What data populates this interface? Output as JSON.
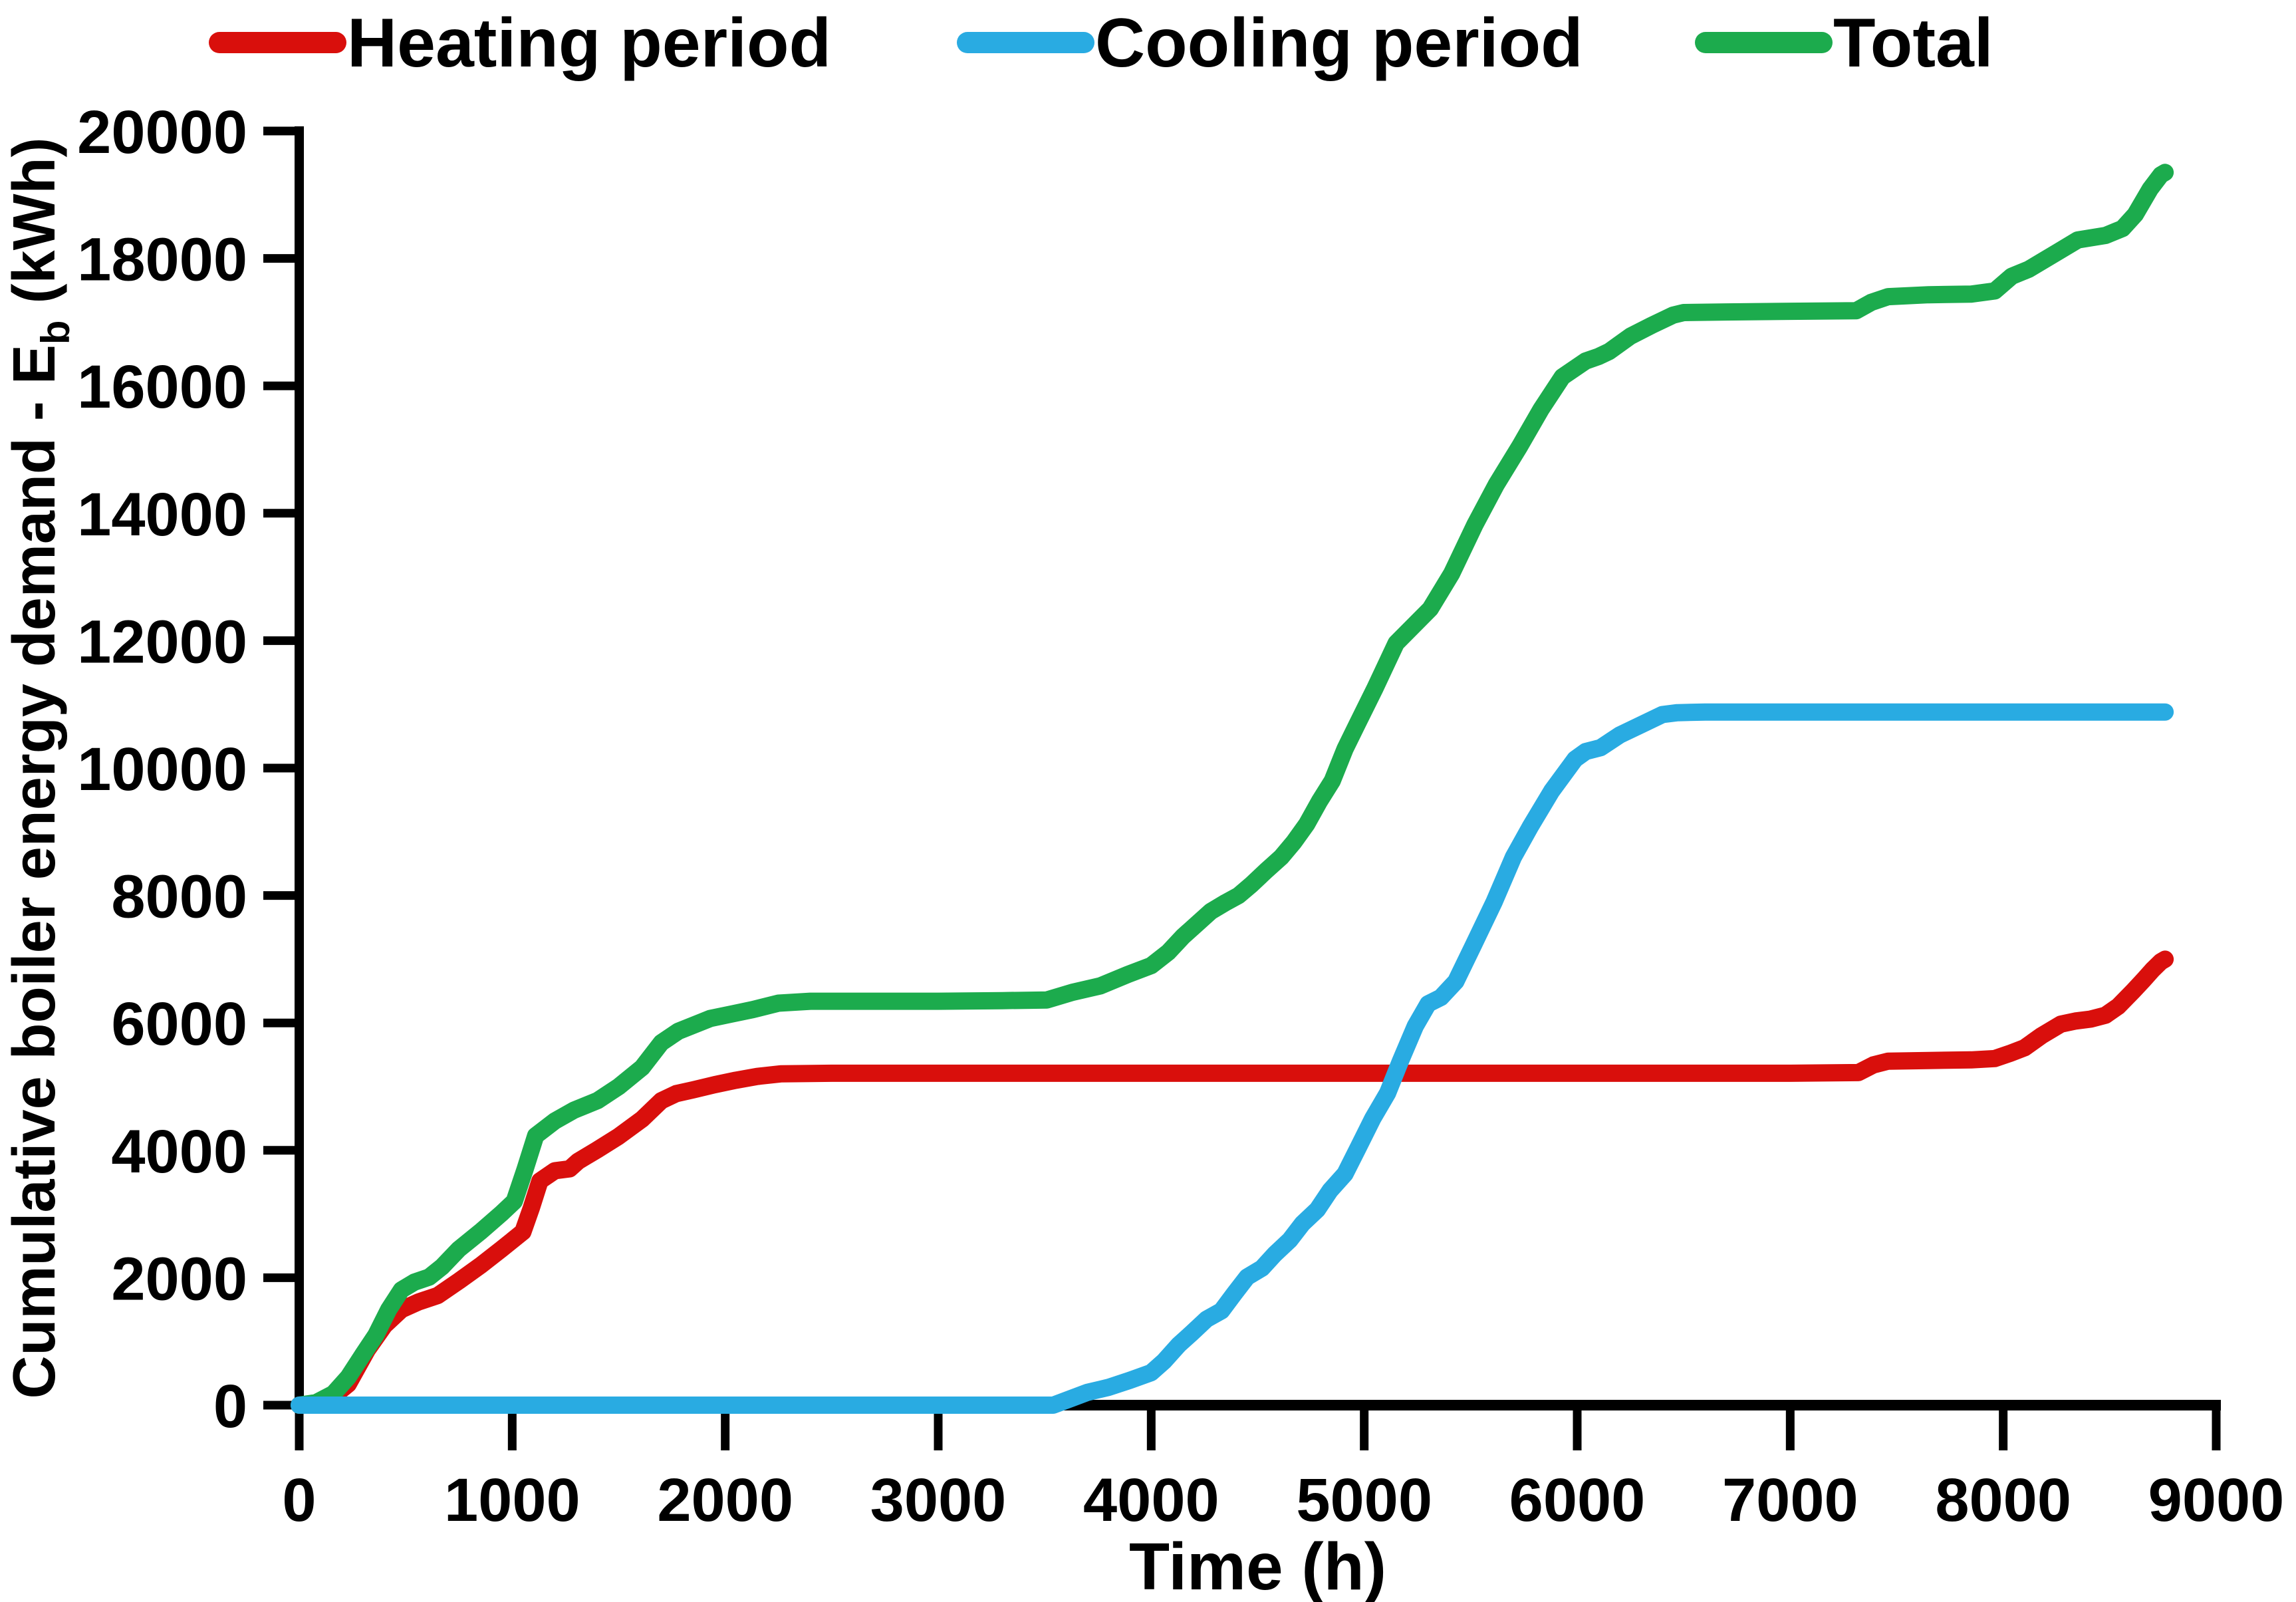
{
  "figure": {
    "background": "#ffffff",
    "axis_color": "#000000"
  },
  "legend": {
    "items": [
      {
        "label": "Heating period",
        "color": "#d90f0c"
      },
      {
        "label": "Cooling period",
        "color": "#29abe2"
      },
      {
        "label": "Total",
        "color": "#1cab4d"
      }
    ]
  },
  "chart_data": {
    "type": "line",
    "title": "",
    "xlabel": "Time (h)",
    "ylabel": {
      "prefix": "Cumulative boiler energy demand - E",
      "sub": "b",
      "suffix": " (kWh)"
    },
    "xlim": [
      0,
      9000
    ],
    "ylim": [
      0,
      20000
    ],
    "grid": false,
    "legend_position": "top",
    "xticks": [
      0,
      1000,
      2000,
      3000,
      4000,
      5000,
      6000,
      7000,
      8000,
      9000
    ],
    "yticks": [
      0,
      2000,
      4000,
      6000,
      8000,
      10000,
      12000,
      14000,
      16000,
      18000,
      20000
    ],
    "series": [
      {
        "name": "Heating period",
        "color": "#d90f0c",
        "points": [
          [
            0,
            0
          ],
          [
            80,
            20
          ],
          [
            160,
            140
          ],
          [
            230,
            330
          ],
          [
            320,
            870
          ],
          [
            400,
            1250
          ],
          [
            480,
            1500
          ],
          [
            560,
            1620
          ],
          [
            650,
            1720
          ],
          [
            750,
            1950
          ],
          [
            850,
            2190
          ],
          [
            950,
            2450
          ],
          [
            1050,
            2720
          ],
          [
            1090,
            3100
          ],
          [
            1130,
            3520
          ],
          [
            1200,
            3680
          ],
          [
            1270,
            3710
          ],
          [
            1310,
            3830
          ],
          [
            1400,
            4010
          ],
          [
            1500,
            4220
          ],
          [
            1610,
            4490
          ],
          [
            1700,
            4780
          ],
          [
            1770,
            4890
          ],
          [
            1850,
            4950
          ],
          [
            1950,
            5030
          ],
          [
            2050,
            5100
          ],
          [
            2150,
            5160
          ],
          [
            2260,
            5200
          ],
          [
            2500,
            5210
          ],
          [
            3000,
            5210
          ],
          [
            3500,
            5210
          ],
          [
            4000,
            5210
          ],
          [
            4500,
            5210
          ],
          [
            5000,
            5210
          ],
          [
            5500,
            5210
          ],
          [
            6000,
            5210
          ],
          [
            6500,
            5210
          ],
          [
            7000,
            5210
          ],
          [
            7320,
            5220
          ],
          [
            7390,
            5340
          ],
          [
            7460,
            5400
          ],
          [
            7650,
            5410
          ],
          [
            7850,
            5420
          ],
          [
            7960,
            5440
          ],
          [
            8030,
            5520
          ],
          [
            8100,
            5610
          ],
          [
            8180,
            5800
          ],
          [
            8270,
            5980
          ],
          [
            8340,
            6030
          ],
          [
            8410,
            6060
          ],
          [
            8480,
            6120
          ],
          [
            8540,
            6260
          ],
          [
            8610,
            6500
          ],
          [
            8660,
            6680
          ],
          [
            8700,
            6830
          ],
          [
            8740,
            6960
          ],
          [
            8760,
            7000
          ]
        ]
      },
      {
        "name": "Cooling period",
        "color": "#29abe2",
        "points": [
          [
            0,
            0
          ],
          [
            1000,
            0
          ],
          [
            2000,
            0
          ],
          [
            3000,
            0
          ],
          [
            3540,
            0
          ],
          [
            3620,
            100
          ],
          [
            3700,
            200
          ],
          [
            3800,
            280
          ],
          [
            3900,
            390
          ],
          [
            4000,
            510
          ],
          [
            4060,
            690
          ],
          [
            4130,
            950
          ],
          [
            4190,
            1130
          ],
          [
            4260,
            1350
          ],
          [
            4330,
            1480
          ],
          [
            4390,
            1750
          ],
          [
            4450,
            2010
          ],
          [
            4520,
            2150
          ],
          [
            4580,
            2370
          ],
          [
            4650,
            2590
          ],
          [
            4710,
            2850
          ],
          [
            4780,
            3070
          ],
          [
            4840,
            3370
          ],
          [
            4910,
            3630
          ],
          [
            4970,
            4030
          ],
          [
            5040,
            4500
          ],
          [
            5110,
            4900
          ],
          [
            5170,
            5400
          ],
          [
            5240,
            5950
          ],
          [
            5300,
            6300
          ],
          [
            5360,
            6400
          ],
          [
            5430,
            6650
          ],
          [
            5510,
            7200
          ],
          [
            5610,
            7900
          ],
          [
            5700,
            8600
          ],
          [
            5780,
            9080
          ],
          [
            5880,
            9640
          ],
          [
            5990,
            10140
          ],
          [
            6040,
            10260
          ],
          [
            6110,
            10320
          ],
          [
            6200,
            10520
          ],
          [
            6300,
            10680
          ],
          [
            6400,
            10840
          ],
          [
            6470,
            10870
          ],
          [
            6600,
            10880
          ],
          [
            7000,
            10880
          ],
          [
            7500,
            10880
          ],
          [
            8000,
            10880
          ],
          [
            8400,
            10880
          ],
          [
            8760,
            10880
          ]
        ]
      },
      {
        "name": "Total",
        "color": "#1cab4d",
        "points": [
          [
            0,
            0
          ],
          [
            80,
            40
          ],
          [
            160,
            180
          ],
          [
            230,
            440
          ],
          [
            300,
            800
          ],
          [
            360,
            1100
          ],
          [
            420,
            1500
          ],
          [
            480,
            1810
          ],
          [
            540,
            1930
          ],
          [
            610,
            2010
          ],
          [
            670,
            2170
          ],
          [
            750,
            2450
          ],
          [
            850,
            2720
          ],
          [
            950,
            3010
          ],
          [
            1010,
            3200
          ],
          [
            1060,
            3700
          ],
          [
            1110,
            4230
          ],
          [
            1200,
            4460
          ],
          [
            1290,
            4630
          ],
          [
            1400,
            4780
          ],
          [
            1500,
            5000
          ],
          [
            1610,
            5300
          ],
          [
            1700,
            5690
          ],
          [
            1780,
            5870
          ],
          [
            1930,
            6070
          ],
          [
            2030,
            6140
          ],
          [
            2130,
            6210
          ],
          [
            2250,
            6310
          ],
          [
            2400,
            6340
          ],
          [
            2700,
            6340
          ],
          [
            3000,
            6340
          ],
          [
            3300,
            6350
          ],
          [
            3510,
            6360
          ],
          [
            3630,
            6480
          ],
          [
            3760,
            6580
          ],
          [
            3890,
            6760
          ],
          [
            4000,
            6900
          ],
          [
            4080,
            7110
          ],
          [
            4150,
            7360
          ],
          [
            4220,
            7570
          ],
          [
            4280,
            7750
          ],
          [
            4350,
            7890
          ],
          [
            4410,
            8000
          ],
          [
            4470,
            8170
          ],
          [
            4540,
            8390
          ],
          [
            4610,
            8600
          ],
          [
            4670,
            8840
          ],
          [
            4730,
            9120
          ],
          [
            4790,
            9480
          ],
          [
            4850,
            9800
          ],
          [
            4910,
            10300
          ],
          [
            4970,
            10710
          ],
          [
            5050,
            11250
          ],
          [
            5150,
            11960
          ],
          [
            5310,
            12500
          ],
          [
            5410,
            13050
          ],
          [
            5520,
            13820
          ],
          [
            5620,
            14450
          ],
          [
            5730,
            15050
          ],
          [
            5830,
            15630
          ],
          [
            5930,
            16140
          ],
          [
            6040,
            16390
          ],
          [
            6100,
            16460
          ],
          [
            6150,
            16540
          ],
          [
            6250,
            16780
          ],
          [
            6350,
            16950
          ],
          [
            6450,
            17110
          ],
          [
            6500,
            17150
          ],
          [
            6700,
            17160
          ],
          [
            7000,
            17170
          ],
          [
            7310,
            17180
          ],
          [
            7380,
            17310
          ],
          [
            7460,
            17400
          ],
          [
            7650,
            17430
          ],
          [
            7850,
            17440
          ],
          [
            7960,
            17490
          ],
          [
            8040,
            17720
          ],
          [
            8120,
            17830
          ],
          [
            8250,
            18090
          ],
          [
            8350,
            18290
          ],
          [
            8480,
            18360
          ],
          [
            8560,
            18470
          ],
          [
            8620,
            18690
          ],
          [
            8690,
            19090
          ],
          [
            8740,
            19310
          ],
          [
            8760,
            19350
          ]
        ]
      }
    ]
  }
}
